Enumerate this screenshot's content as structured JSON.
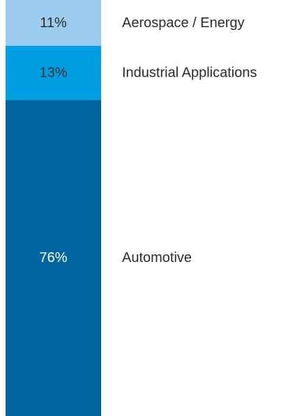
{
  "chart_data": {
    "type": "bar",
    "stacked": true,
    "orientation": "vertical",
    "unit": "%",
    "segments": [
      {
        "name": "Aerospace / Energy",
        "value": 11,
        "label": "11%",
        "color": "#9dcdee",
        "text_color": "#2b2b2b"
      },
      {
        "name": "Industrial Applications",
        "value": 13,
        "label": "13%",
        "color": "#009fe3",
        "text_color": "#2b2b2b"
      },
      {
        "name": "Automotive",
        "value": 76,
        "label": "76%",
        "color": "#00649f",
        "text_color": "#ffffff"
      }
    ],
    "total": 100,
    "grid": false,
    "legend": "right"
  }
}
